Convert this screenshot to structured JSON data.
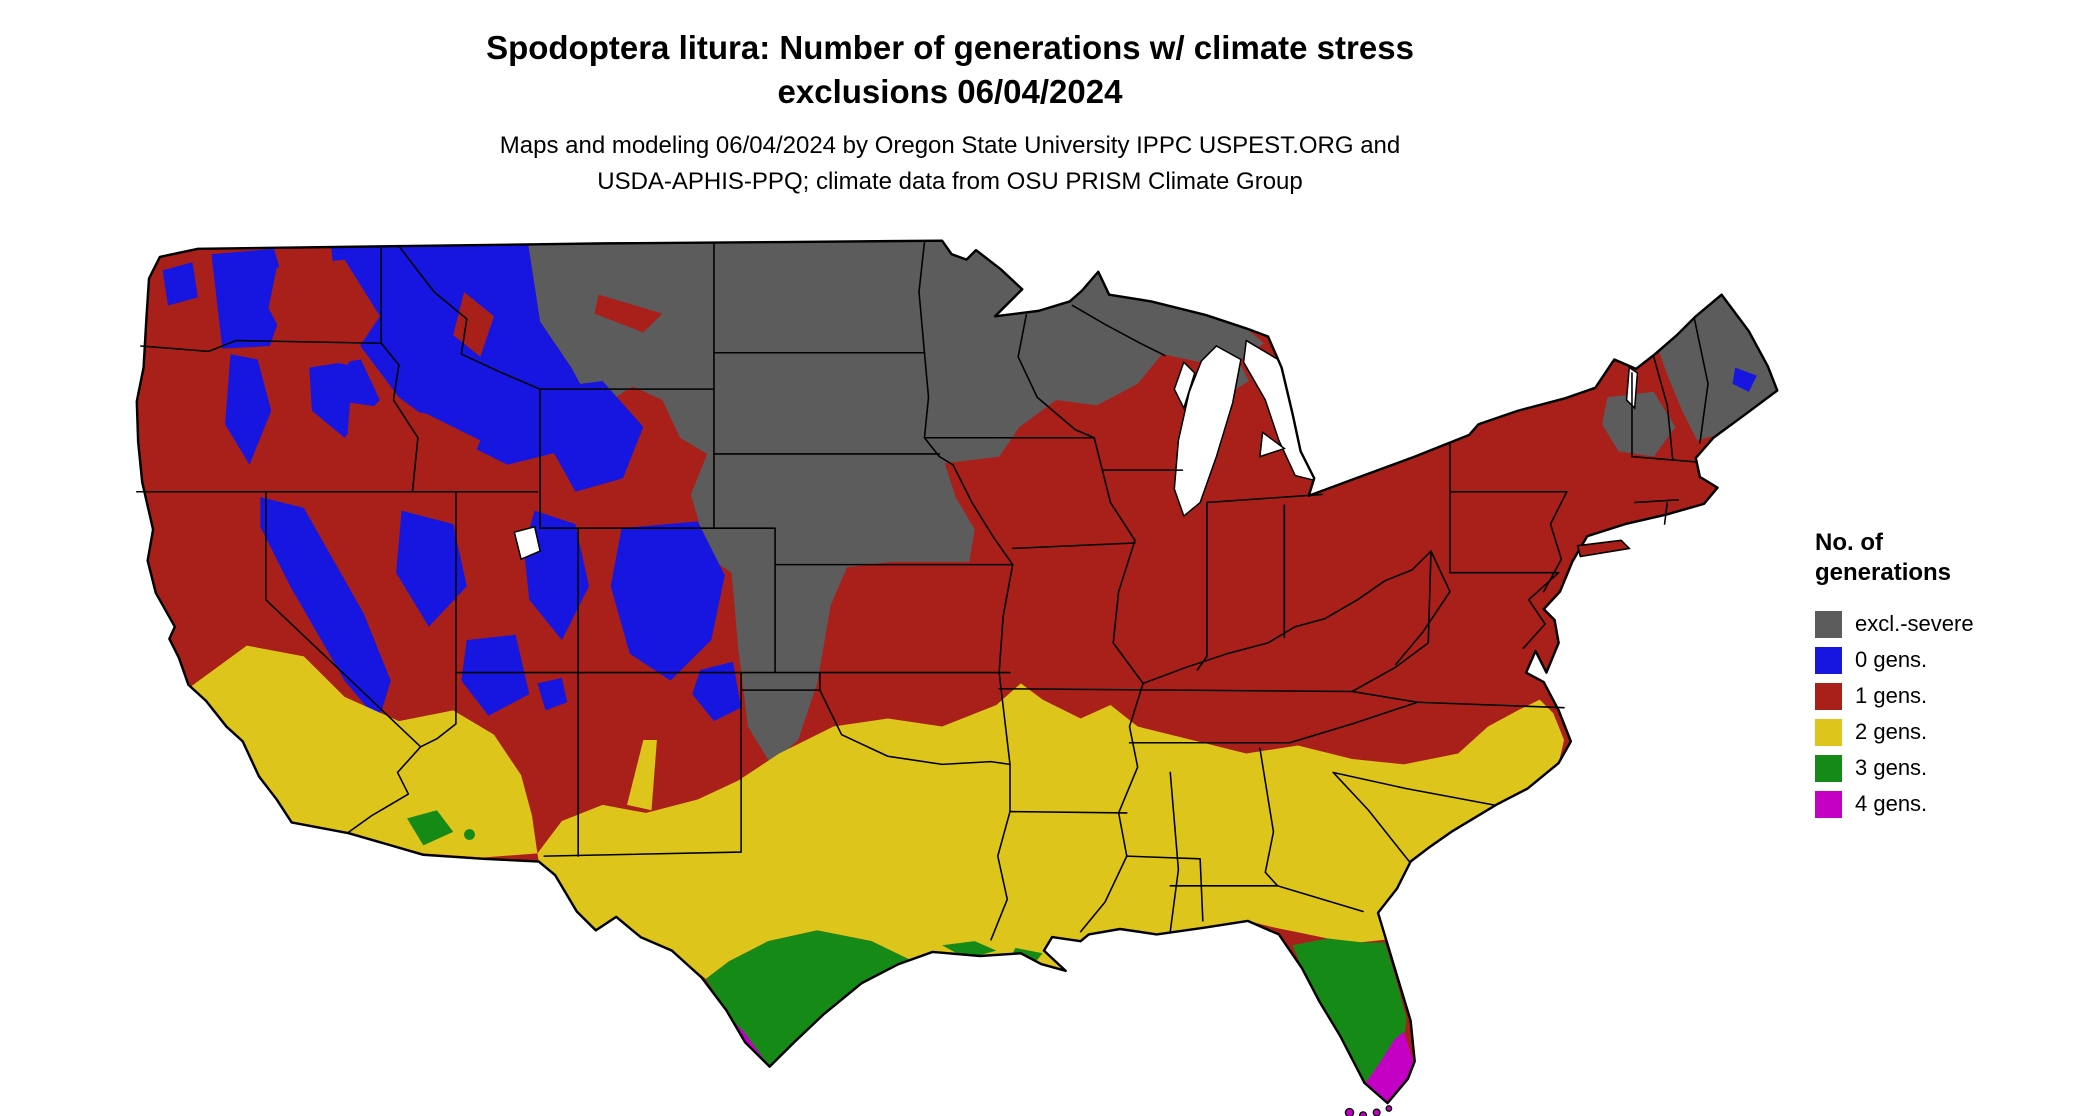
{
  "title": {
    "line1": "Spodoptera litura: Number of generations w/ climate stress",
    "line2": "exclusions 06/04/2024"
  },
  "subtitle": {
    "line1": "Maps and modeling 06/04/2024 by Oregon State University IPPC USPEST.ORG and",
    "line2": "USDA-APHIS-PPQ; climate data from OSU PRISM Climate Group"
  },
  "legend": {
    "title_line1": "No. of",
    "title_line2": "generations",
    "items": [
      {
        "key": "excl",
        "label": "excl.-severe",
        "color": "#5c5c5c"
      },
      {
        "key": "g0",
        "label": "0 gens.",
        "color": "#1616e0"
      },
      {
        "key": "g1",
        "label": "1 gens.",
        "color": "#a82019"
      },
      {
        "key": "g2",
        "label": "2 gens.",
        "color": "#ddc51c"
      },
      {
        "key": "g3",
        "label": "3 gens.",
        "color": "#168a16"
      },
      {
        "key": "g4",
        "label": "4 gens.",
        "color": "#c400c4"
      }
    ]
  },
  "map": {
    "name": "contiguous-us-number-of-generations-map"
  }
}
